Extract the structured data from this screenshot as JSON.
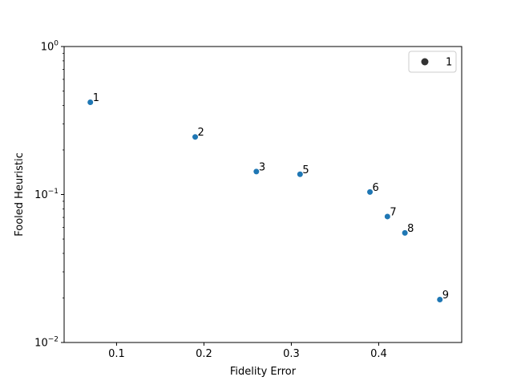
{
  "chart_data": {
    "type": "scatter",
    "xlabel": "Fidelity Error",
    "ylabel": "Fooled Heuristic",
    "xlim": [
      0.04,
      0.495
    ],
    "ylim": [
      0.01,
      1
    ],
    "yscale": "log",
    "grid": false,
    "x_ticks": [
      {
        "value": 0.1,
        "label": "0.1"
      },
      {
        "value": 0.2,
        "label": "0.2"
      },
      {
        "value": 0.3,
        "label": "0.3"
      },
      {
        "value": 0.4,
        "label": "0.4"
      }
    ],
    "y_ticks": [
      {
        "value": 1,
        "base": "10",
        "exponent": "0"
      },
      {
        "value": 0.1,
        "base": "10",
        "exponent": "−1"
      },
      {
        "value": 0.01,
        "base": "10",
        "exponent": "−2"
      }
    ],
    "marker_color": "#1f77b4",
    "legend": {
      "position": "top-right",
      "entries": [
        {
          "label": "1",
          "marker": "#333333"
        }
      ]
    },
    "points": [
      {
        "x": 0.07,
        "y": 0.42,
        "label": "1"
      },
      {
        "x": 0.19,
        "y": 0.245,
        "label": "2"
      },
      {
        "x": 0.26,
        "y": 0.143,
        "label": "3"
      },
      {
        "x": 0.31,
        "y": 0.137,
        "label": "5"
      },
      {
        "x": 0.39,
        "y": 0.104,
        "label": "6"
      },
      {
        "x": 0.41,
        "y": 0.071,
        "label": "7"
      },
      {
        "x": 0.43,
        "y": 0.055,
        "label": "8"
      },
      {
        "x": 0.47,
        "y": 0.0195,
        "label": "9"
      }
    ]
  }
}
